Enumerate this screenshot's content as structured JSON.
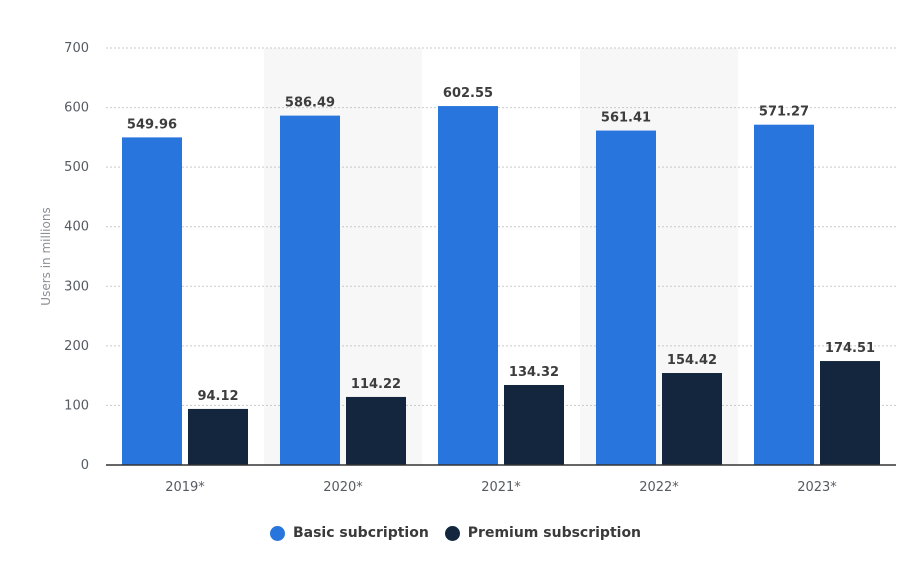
{
  "chart_data": {
    "type": "bar",
    "categories": [
      "2019*",
      "2020*",
      "2021*",
      "2022*",
      "2023*"
    ],
    "series": [
      {
        "name": "Basic subcription",
        "values": [
          549.96,
          586.49,
          602.55,
          561.41,
          571.27
        ],
        "color": "#2876dd"
      },
      {
        "name": "Premium subscription",
        "values": [
          94.12,
          114.22,
          134.32,
          154.42,
          174.51
        ],
        "color": "#13263d"
      }
    ],
    "ylabel": "Users in millions",
    "ylim": [
      0,
      700
    ],
    "yticks": [
      0,
      100,
      200,
      300,
      400,
      500,
      600,
      700
    ],
    "grid": true,
    "legend": "bottom-center"
  }
}
